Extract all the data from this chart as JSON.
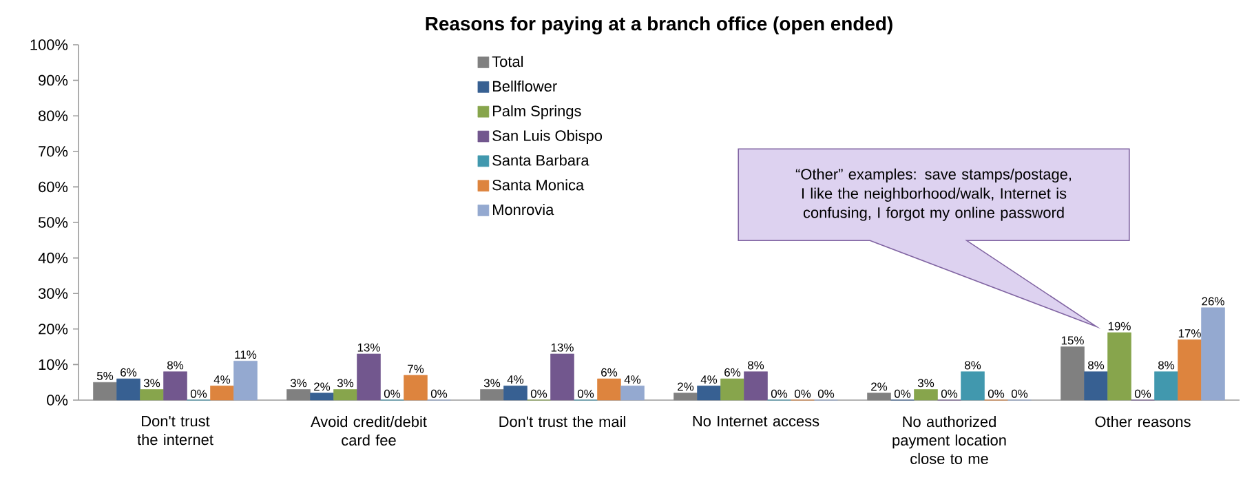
{
  "chart_data": {
    "type": "bar",
    "title": "Reasons for paying at a branch office (open ended)",
    "categories": [
      "Don't trust the internet",
      "Avoid credit/debit card fee",
      "Don't trust the mail",
      "No Internet access",
      "No authorized payment location close to me",
      "Other reasons"
    ],
    "series": [
      {
        "name": "Total",
        "color": "#808080",
        "values": [
          5,
          3,
          3,
          2,
          2,
          15
        ],
        "value_labels": [
          "5%",
          "3%",
          "3%",
          "2%",
          "2%",
          "15%"
        ]
      },
      {
        "name": "Bellflower",
        "color": "#376092",
        "values": [
          6,
          2,
          4,
          4,
          0,
          8
        ],
        "value_labels": [
          "6%",
          "2%",
          "4%",
          "4%",
          "0%",
          "8%"
        ]
      },
      {
        "name": "Palm Springs",
        "color": "#87a54c",
        "values": [
          3,
          3,
          0,
          6,
          3,
          19
        ],
        "value_labels": [
          "3%",
          "3%",
          "0%",
          "6%",
          "3%",
          "19%"
        ]
      },
      {
        "name": "San Luis Obispo",
        "color": "#72578e",
        "values": [
          8,
          13,
          13,
          8,
          0,
          0
        ],
        "value_labels": [
          "8%",
          "13%",
          "13%",
          "8%",
          "0%",
          "0%"
        ]
      },
      {
        "name": "Santa Barbara",
        "color": "#4198ae",
        "values": [
          0,
          0,
          0,
          0,
          8,
          8
        ],
        "value_labels": [
          "0%",
          "0%",
          "0%",
          "0%",
          "8%",
          "8%"
        ]
      },
      {
        "name": "Santa Monica",
        "color": "#dd843e",
        "values": [
          4,
          7,
          6,
          0,
          0,
          17
        ],
        "value_labels": [
          "4%",
          "7%",
          "6%",
          "0%",
          "0%",
          "17%"
        ]
      },
      {
        "name": "Monrovia",
        "color": "#94a9d0",
        "values": [
          11,
          0,
          4,
          0,
          0,
          26
        ],
        "value_labels": [
          "11%",
          "0%",
          "4%",
          "0%",
          "0%",
          "26%"
        ]
      }
    ],
    "ylim": [
      0,
      100
    ],
    "yticks": [
      {
        "value": 0,
        "label": "0%"
      },
      {
        "value": 10,
        "label": "10%"
      },
      {
        "value": 20,
        "label": "20%"
      },
      {
        "value": 30,
        "label": "30%"
      },
      {
        "value": 40,
        "label": "40%"
      },
      {
        "value": 50,
        "label": "50%"
      },
      {
        "value": 60,
        "label": "60%"
      },
      {
        "value": 70,
        "label": "70%"
      },
      {
        "value": 80,
        "label": "80%"
      },
      {
        "value": 90,
        "label": "90%"
      },
      {
        "value": 100,
        "label": "100%"
      }
    ],
    "grid": false,
    "legend": "top",
    "annotations": [
      "“Other” examples: save stamps/postage, I like the neighborhood/walk, Internet is confusing, I forgot my online password"
    ]
  }
}
